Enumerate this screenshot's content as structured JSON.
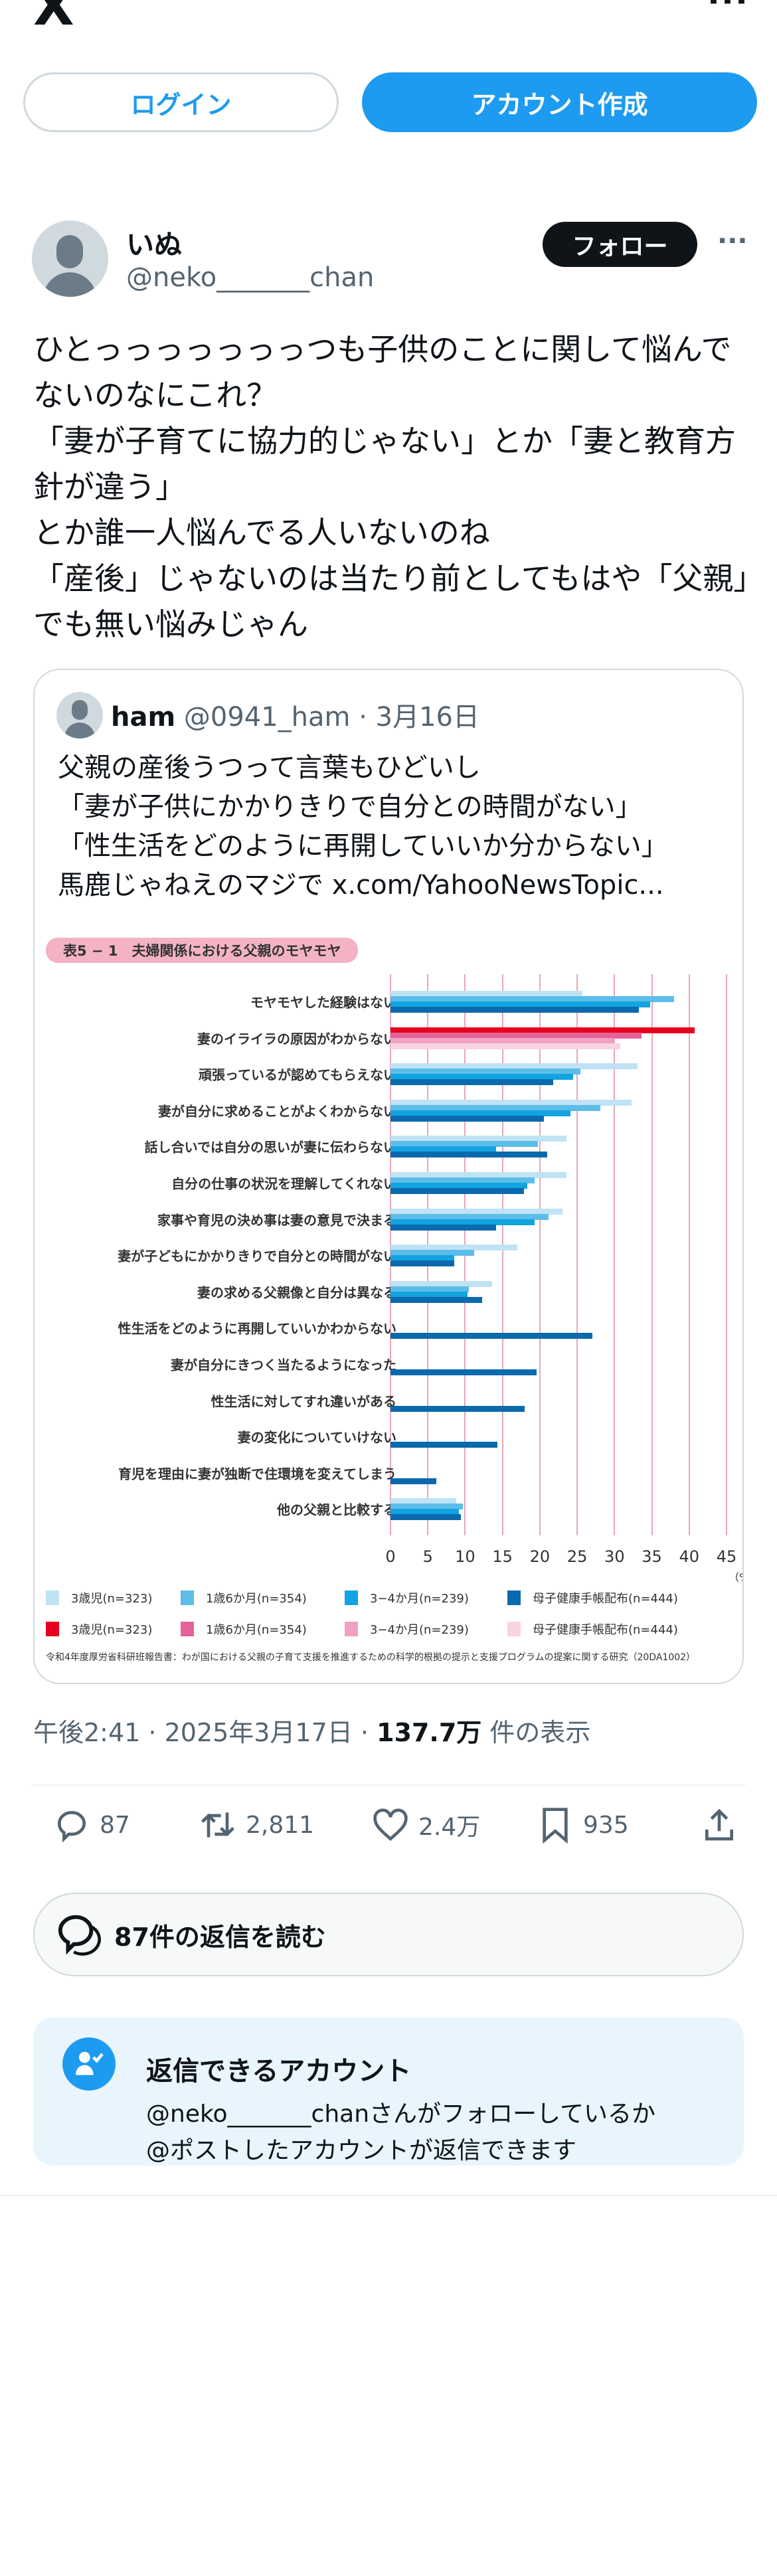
{
  "header": {
    "logo": "X",
    "more_icon": "more-icon"
  },
  "auth": {
    "login": "ログイン",
    "signup": "アカウント作成"
  },
  "tweet": {
    "name": "いぬ",
    "handle": "@neko_______chan",
    "follow": "フォロー",
    "lines": [
      "ひとっっっっっっっつも子供のことに関して悩んで",
      "ないのなにこれ？",
      "「妻が子育てに協力的じゃない」とか「妻と教育方",
      "針が違う」",
      "とか誰一人悩んでる人いないのね",
      "「産後」じゃないのは当たり前としてもはや「父親」",
      "でも無い悩みじゃん"
    ],
    "time": "午後2:41",
    "date": "2025年3月17日",
    "views": "137.7万",
    "views_label": "件の表示",
    "stats": {
      "replies": "87",
      "retweets": "2,811",
      "likes": "2.4万",
      "bookmarks": "935"
    },
    "read_replies": "87件の返信を読む"
  },
  "quote": {
    "name": "ham",
    "handle": "@0941_ham",
    "date": "3月16日",
    "lines": [
      "父親の産後うつって言葉もひどいし",
      "「妻が子供にかかりきりで自分との時間がない」",
      "「性生活をどのように再開していいか分からない」",
      "馬鹿じゃねえのマジで  x.com/YahooNewsTopic..."
    ]
  },
  "chart_data": {
    "type": "bar",
    "orientation": "horizontal",
    "title": "表5 − 1　夫婦関係における父親のモヤモヤ",
    "unit": "（%）",
    "xlim": [
      0,
      45
    ],
    "xticks": [
      "0",
      "5",
      "10",
      "15",
      "20",
      "25",
      "30",
      "35",
      "40",
      "45"
    ],
    "grid": true,
    "legend_placement": "bottom",
    "categories": [
      "モヤモヤした経験はない",
      "妻のイライラの原因がわからない",
      "頑張っているが認めてもらえない",
      "妻が自分に求めることがよくわからない",
      "話し合いでは自分の思いが妻に伝わらない",
      "自分の仕事の状況を理解してくれない",
      "家事や育児の決め事は妻の意見で決まる",
      "妻が子どもにかかりきりで自分との時間がない",
      "妻の求める父親像と自分は異なる",
      "性生活をどのように再開していいかわからない",
      "妻が自分にきつく当たるようになった",
      "性生活に対してすれ違いがある",
      "妻の変化についていけない",
      "育児を理由に妻が独断で住環境を変えてしまう",
      "他の父親と比較する"
    ],
    "series": [
      {
        "name": "3歳児(n=323)",
        "values": [
          25.7,
          40.7,
          33.1,
          32.3,
          23.6,
          23.6,
          23.0,
          17.0,
          13.6,
          null,
          null,
          null,
          null,
          null,
          8.8
        ]
      },
      {
        "name": "1歳6か月(n=354)",
        "values": [
          38.0,
          33.6,
          25.4,
          28.1,
          19.7,
          19.3,
          21.2,
          11.2,
          10.5,
          null,
          null,
          null,
          null,
          null,
          9.7
        ]
      },
      {
        "name": "3−4か月(n=239)",
        "values": [
          34.8,
          30.0,
          24.5,
          24.1,
          14.1,
          18.3,
          19.3,
          8.5,
          10.3,
          null,
          null,
          null,
          null,
          null,
          9.2
        ]
      },
      {
        "name": "母子健康手帳配布(n=444)",
        "values": [
          33.3,
          30.8,
          21.8,
          20.5,
          21.0,
          17.9,
          14.1,
          8.5,
          12.3,
          27.0,
          19.6,
          18.0,
          14.3,
          6.1,
          9.4
        ]
      }
    ],
    "highlight_category_index": 1,
    "colors": {
      "normal": [
        "#bfe3f5",
        "#5bbde8",
        "#12a3e0",
        "#0a6aad"
      ],
      "highlight": [
        "#e60020",
        "#e4629a",
        "#efa1c2",
        "#f8d3e2"
      ]
    },
    "legend": [
      {
        "label": "3歳児(n=323)",
        "color": "#bfe3f5"
      },
      {
        "label": "1歳6か月(n=354)",
        "color": "#5bbde8"
      },
      {
        "label": "3−4か月(n=239)",
        "color": "#12a3e0"
      },
      {
        "label": "母子健康手帳配布(n=444)",
        "color": "#0a6aad"
      },
      {
        "label": "3歳児(n=323)",
        "color": "#e60020"
      },
      {
        "label": "1歳6か月(n=354)",
        "color": "#e4629a"
      },
      {
        "label": "3−4か月(n=239)",
        "color": "#efa1c2"
      },
      {
        "label": "母子健康手帳配布(n=444)",
        "color": "#f8d3e2"
      }
    ],
    "source": "令和4年度厚労省科研班報告書：わが国における父親の子育て支援を推進するための科学的根拠の提示と支援プログラムの提案に関する研究（20DA1002）"
  },
  "can_reply": {
    "title": "返信できるアカウント",
    "line1": "@neko_______chanさんがフォローしているか",
    "line2": "@ポストしたアカウントが返信できます"
  },
  "colors": {
    "accent": "#1d9bf0",
    "text": "#0f1419",
    "muted": "#536471",
    "border": "#cfd9de"
  }
}
